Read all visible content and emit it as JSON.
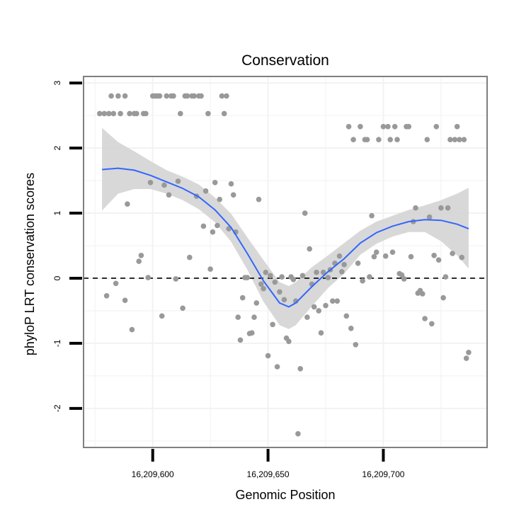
{
  "chart_data": {
    "type": "scatter",
    "title": "Conservation",
    "xlabel": "Genomic Position",
    "ylabel": "phyloP LRT conservation scores",
    "xlim": [
      16209570,
      16209745
    ],
    "ylim": [
      -2.6,
      3.1
    ],
    "x_ticks": [
      16209600,
      16209650,
      16209700
    ],
    "x_tick_labels": [
      "16,209,600",
      "16,209,650",
      "16,209,700"
    ],
    "y_ticks": [
      3,
      2,
      1,
      0,
      -1,
      -2
    ],
    "y_tick_labels": [
      "3",
      "2",
      "1",
      "0",
      "-1",
      "-2"
    ],
    "grid": true,
    "reference_line": {
      "y": 0,
      "style": "dashed",
      "color": "#000000"
    },
    "colors": {
      "points": "#999999",
      "smooth": "#3366ff",
      "ribbon": "#d4d4d4",
      "grid": "#f2f2f2",
      "frame": "#7f7f7f"
    },
    "series": [
      {
        "name": "phyloP scores",
        "kind": "points",
        "points": [
          [
            16209577,
            2.53
          ],
          [
            16209579,
            2.53
          ],
          [
            16209580,
            -0.27
          ],
          [
            16209581,
            2.53
          ],
          [
            16209582,
            2.8
          ],
          [
            16209583,
            2.53
          ],
          [
            16209584,
            -0.08
          ],
          [
            16209585,
            2.8
          ],
          [
            16209586,
            2.53
          ],
          [
            16209588,
            2.8
          ],
          [
            16209588,
            -0.34
          ],
          [
            16209589,
            1.14
          ],
          [
            16209590,
            2.53
          ],
          [
            16209591,
            -0.79
          ],
          [
            16209592,
            2.53
          ],
          [
            16209593,
            2.53
          ],
          [
            16209594,
            0.26
          ],
          [
            16209595,
            0.35
          ],
          [
            16209596,
            2.53
          ],
          [
            16209597,
            2.53
          ],
          [
            16209598,
            0.01
          ],
          [
            16209599,
            1.47
          ],
          [
            16209600,
            2.8
          ],
          [
            16209601,
            2.8
          ],
          [
            16209602,
            2.8
          ],
          [
            16209603,
            2.8
          ],
          [
            16209604,
            -0.58
          ],
          [
            16209605,
            1.43
          ],
          [
            16209606,
            2.8
          ],
          [
            16209607,
            1.28
          ],
          [
            16209608,
            2.8
          ],
          [
            16209609,
            2.8
          ],
          [
            16209610,
            -0.01
          ],
          [
            16209611,
            1.49
          ],
          [
            16209612,
            2.53
          ],
          [
            16209613,
            -0.46
          ],
          [
            16209614,
            2.8
          ],
          [
            16209615,
            2.8
          ],
          [
            16209616,
            0.32
          ],
          [
            16209617,
            2.8
          ],
          [
            16209618,
            2.8
          ],
          [
            16209619,
            1.26
          ],
          [
            16209620,
            2.8
          ],
          [
            16209621,
            2.8
          ],
          [
            16209622,
            0.8
          ],
          [
            16209623,
            1.34
          ],
          [
            16209624,
            2.53
          ],
          [
            16209625,
            0.14
          ],
          [
            16209626,
            0.71
          ],
          [
            16209627,
            1.47
          ],
          [
            16209628,
            0.81
          ],
          [
            16209629,
            1.21
          ],
          [
            16209630,
            2.8
          ],
          [
            16209631,
            2.53
          ],
          [
            16209632,
            2.8
          ],
          [
            16209633,
            0.76
          ],
          [
            16209634,
            1.45
          ],
          [
            16209635,
            1.28
          ],
          [
            16209636,
            0.71
          ],
          [
            16209637,
            -0.6
          ],
          [
            16209638,
            -0.95
          ],
          [
            16209639,
            -0.3
          ],
          [
            16209640,
            0.01
          ],
          [
            16209641,
            0.01
          ],
          [
            16209642,
            -0.85
          ],
          [
            16209643,
            -0.84
          ],
          [
            16209644,
            -0.6
          ],
          [
            16209645,
            -0.38
          ],
          [
            16209646,
            1.21
          ],
          [
            16209647,
            -0.09
          ],
          [
            16209648,
            -0.16
          ],
          [
            16209649,
            0.09
          ],
          [
            16209650,
            -1.19
          ],
          [
            16209651,
            0.04
          ],
          [
            16209652,
            -0.71
          ],
          [
            16209653,
            -0.06
          ],
          [
            16209654,
            -1.36
          ],
          [
            16209655,
            -0.21
          ],
          [
            16209656,
            0.02
          ],
          [
            16209657,
            -0.33
          ],
          [
            16209658,
            -0.92
          ],
          [
            16209659,
            -0.97
          ],
          [
            16209660,
            0.02
          ],
          [
            16209661,
            -0.02
          ],
          [
            16209662,
            -0.35
          ],
          [
            16209663,
            -2.39
          ],
          [
            16209664,
            -1.39
          ],
          [
            16209665,
            0.04
          ],
          [
            16209666,
            1.0
          ],
          [
            16209667,
            -0.6
          ],
          [
            16209668,
            0.45
          ],
          [
            16209669,
            -0.09
          ],
          [
            16209670,
            -0.44
          ],
          [
            16209671,
            0.09
          ],
          [
            16209672,
            -0.5
          ],
          [
            16209673,
            -0.84
          ],
          [
            16209674,
            0.09
          ],
          [
            16209675,
            -0.42
          ],
          [
            16209676,
            0.01
          ],
          [
            16209677,
            0.13
          ],
          [
            16209678,
            -0.35
          ],
          [
            16209679,
            0.23
          ],
          [
            16209680,
            -0.35
          ],
          [
            16209681,
            0.34
          ],
          [
            16209682,
            0.1
          ],
          [
            16209683,
            0.21
          ],
          [
            16209684,
            -0.58
          ],
          [
            16209685,
            2.33
          ],
          [
            16209686,
            -0.77
          ],
          [
            16209687,
            2.13
          ],
          [
            16209688,
            -1.02
          ],
          [
            16209689,
            0.23
          ],
          [
            16209690,
            2.33
          ],
          [
            16209691,
            -0.04
          ],
          [
            16209692,
            2.13
          ],
          [
            16209693,
            2.13
          ],
          [
            16209694,
            0.02
          ],
          [
            16209695,
            0.96
          ],
          [
            16209696,
            0.33
          ],
          [
            16209697,
            0.4
          ],
          [
            16209698,
            2.13
          ],
          [
            16209700,
            2.33
          ],
          [
            16209701,
            0.34
          ],
          [
            16209702,
            2.33
          ],
          [
            16209703,
            2.13
          ],
          [
            16209704,
            0.4
          ],
          [
            16209705,
            2.33
          ],
          [
            16209706,
            2.13
          ],
          [
            16209707,
            0.07
          ],
          [
            16209708,
            0.05
          ],
          [
            16209709,
            -0.01
          ],
          [
            16209710,
            2.33
          ],
          [
            16209711,
            2.33
          ],
          [
            16209712,
            0.33
          ],
          [
            16209713,
            0.87
          ],
          [
            16209714,
            1.08
          ],
          [
            16209715,
            -0.23
          ],
          [
            16209716,
            -0.19
          ],
          [
            16209717,
            -0.24
          ],
          [
            16209718,
            -0.62
          ],
          [
            16209719,
            2.13
          ],
          [
            16209720,
            0.94
          ],
          [
            16209721,
            -0.7
          ],
          [
            16209722,
            0.35
          ],
          [
            16209723,
            2.33
          ],
          [
            16209724,
            0.28
          ],
          [
            16209725,
            1.08
          ],
          [
            16209726,
            -0.3
          ],
          [
            16209727,
            0.02
          ],
          [
            16209728,
            1.08
          ],
          [
            16209729,
            2.13
          ],
          [
            16209730,
            0.38
          ],
          [
            16209731,
            2.13
          ],
          [
            16209732,
            2.33
          ],
          [
            16209733,
            2.13
          ],
          [
            16209734,
            0.32
          ],
          [
            16209735,
            2.13
          ],
          [
            16209736,
            -1.23
          ],
          [
            16209737,
            -1.14
          ]
        ]
      },
      {
        "name": "loess fit",
        "kind": "line",
        "x": [
          16209578,
          16209585,
          16209592,
          16209599,
          16209606,
          16209613,
          16209620,
          16209627,
          16209634,
          16209641,
          16209648,
          16209655,
          16209659,
          16209662,
          16209669,
          16209676,
          16209683,
          16209690,
          16209697,
          16209704,
          16209711,
          16209718,
          16209725,
          16209732,
          16209737
        ],
        "y": [
          1.67,
          1.69,
          1.66,
          1.58,
          1.48,
          1.38,
          1.25,
          1.05,
          0.78,
          0.38,
          -0.04,
          -0.38,
          -0.44,
          -0.38,
          -0.13,
          0.1,
          0.3,
          0.54,
          0.7,
          0.8,
          0.87,
          0.9,
          0.89,
          0.83,
          0.76
        ]
      },
      {
        "name": "confidence band",
        "kind": "ribbon",
        "x": [
          16209578,
          16209585,
          16209592,
          16209599,
          16209606,
          16209613,
          16209620,
          16209627,
          16209634,
          16209641,
          16209648,
          16209655,
          16209659,
          16209662,
          16209669,
          16209676,
          16209683,
          16209690,
          16209697,
          16209704,
          16209711,
          16209718,
          16209725,
          16209732,
          16209737
        ],
        "lower": [
          1.04,
          1.3,
          1.37,
          1.37,
          1.3,
          1.2,
          1.06,
          0.86,
          0.56,
          0.13,
          -0.36,
          -0.72,
          -0.78,
          -0.72,
          -0.43,
          -0.15,
          0.07,
          0.36,
          0.53,
          0.64,
          0.71,
          0.71,
          0.57,
          0.35,
          0.15
        ],
        "upper": [
          2.31,
          2.09,
          1.95,
          1.8,
          1.66,
          1.56,
          1.44,
          1.24,
          0.99,
          0.63,
          0.28,
          -0.06,
          -0.12,
          -0.06,
          0.17,
          0.35,
          0.54,
          0.73,
          0.87,
          0.96,
          1.05,
          1.12,
          1.2,
          1.3,
          1.39
        ]
      }
    ]
  }
}
